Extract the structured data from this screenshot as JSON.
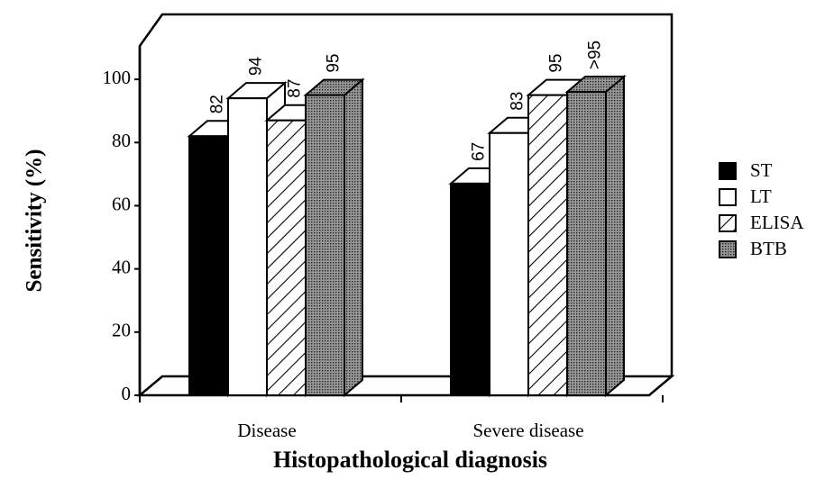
{
  "chart_data": {
    "type": "bar3d",
    "y_label": "Sensitivity (%)",
    "x_label": "Histopathological diagnosis",
    "categories": [
      "Disease",
      "Severe disease"
    ],
    "series": [
      {
        "name": "ST",
        "color": "#000000",
        "values": [
          82,
          67
        ]
      },
      {
        "name": "LT",
        "color": "#ffffff",
        "values": [
          94,
          83
        ]
      },
      {
        "name": "ELISA",
        "color": "#ffffff",
        "pattern": "hatch",
        "values": [
          87,
          95
        ]
      },
      {
        "name": "BTB",
        "color": "#777777",
        "pattern": "stipple",
        "values": [
          95,
          96
        ],
        "value_labels": [
          "95",
          ">95"
        ]
      }
    ],
    "ylim": [
      0,
      112
    ],
    "yticks": [
      0,
      20,
      40,
      60,
      80,
      100
    ]
  }
}
